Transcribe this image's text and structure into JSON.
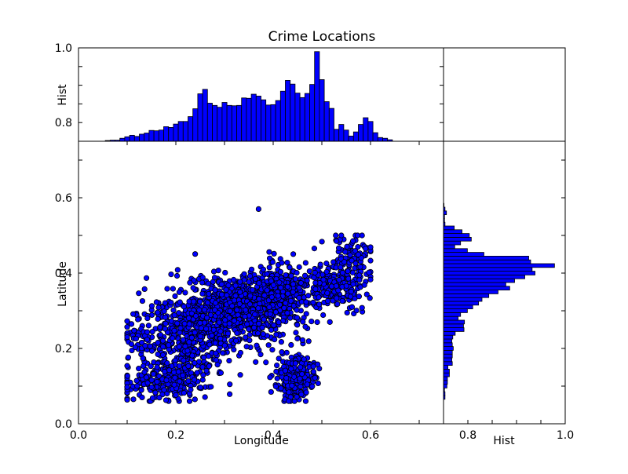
{
  "chart_data": {
    "title": "Crime Locations",
    "scatter": {
      "type": "scatter",
      "xlabel": "Longitude",
      "ylabel": "Latitude",
      "xlim": [
        0.0,
        0.75
      ],
      "ylim": [
        0.0,
        0.75
      ],
      "xticks": [
        "0.0",
        "0.2",
        "0.4",
        "0.6"
      ],
      "yticks": [
        "0.0",
        "0.2",
        "0.4",
        "0.6"
      ],
      "overlapping_ytick_label": "0.4",
      "outlier": {
        "x": 0.37,
        "y": 0.57
      },
      "clusters": [
        {
          "cx": 0.34,
          "cy": 0.31,
          "sx": 0.065,
          "sy": 0.04,
          "n": 900
        },
        {
          "cx": 0.22,
          "cy": 0.23,
          "sx": 0.06,
          "sy": 0.05,
          "n": 500
        },
        {
          "cx": 0.18,
          "cy": 0.11,
          "sx": 0.045,
          "sy": 0.025,
          "n": 220
        },
        {
          "cx": 0.445,
          "cy": 0.12,
          "sx": 0.02,
          "sy": 0.03,
          "n": 220
        },
        {
          "cx": 0.52,
          "cy": 0.37,
          "sx": 0.035,
          "sy": 0.03,
          "n": 220
        },
        {
          "cx": 0.56,
          "cy": 0.45,
          "sx": 0.02,
          "sy": 0.03,
          "n": 90
        },
        {
          "cx": 0.41,
          "cy": 0.37,
          "sx": 0.025,
          "sy": 0.03,
          "n": 160
        }
      ],
      "marker_color": "#0000ff",
      "marker_edge": "#000000"
    },
    "top_hist": {
      "type": "bar",
      "ylabel": "Hist",
      "ylim": [
        0.75,
        1.0
      ],
      "yticks": [
        "0.8",
        "1.0"
      ],
      "x_start": 0.055,
      "bin_width": 0.01,
      "values": [
        0.752,
        0.753,
        0.753,
        0.758,
        0.762,
        0.766,
        0.763,
        0.769,
        0.772,
        0.779,
        0.778,
        0.78,
        0.789,
        0.787,
        0.796,
        0.803,
        0.803,
        0.816,
        0.837,
        0.877,
        0.889,
        0.852,
        0.846,
        0.841,
        0.854,
        0.846,
        0.845,
        0.846,
        0.866,
        0.865,
        0.876,
        0.871,
        0.861,
        0.847,
        0.848,
        0.859,
        0.884,
        0.913,
        0.903,
        0.879,
        0.867,
        0.878,
        0.902,
        0.99,
        0.915,
        0.856,
        0.838,
        0.782,
        0.795,
        0.78,
        0.764,
        0.775,
        0.795,
        0.813,
        0.803,
        0.773,
        0.76,
        0.758,
        0.754
      ],
      "bar_color": "#0000ff"
    },
    "right_hist": {
      "type": "bar",
      "xlabel": "Hist",
      "xlim": [
        0.75,
        1.0
      ],
      "xticks": [
        "0.8",
        "1.0"
      ],
      "y_start": 0.065,
      "bin_width": 0.01,
      "values": [
        0.753,
        0.753,
        0.752,
        0.757,
        0.758,
        0.758,
        0.762,
        0.762,
        0.759,
        0.768,
        0.767,
        0.768,
        0.768,
        0.77,
        0.768,
        0.767,
        0.769,
        0.774,
        0.792,
        0.791,
        0.793,
        0.78,
        0.785,
        0.799,
        0.81,
        0.822,
        0.829,
        0.843,
        0.862,
        0.886,
        0.878,
        0.896,
        0.917,
        0.938,
        0.932,
        0.978,
        0.929,
        0.925,
        0.833,
        0.799,
        0.773,
        0.785,
        0.807,
        0.803,
        0.788,
        0.772,
        0.753,
        0.752,
        0.752,
        0.756,
        0.753,
        0.751
      ],
      "bar_color": "#0000ff"
    }
  }
}
